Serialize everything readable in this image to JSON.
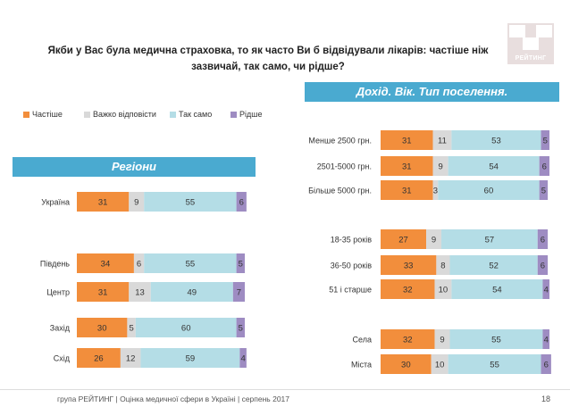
{
  "page": {
    "title": "Якби у Вас була медична страховка, то як часто Ви б відвідували лікарів: частіше ніж зазвичай, так само, чи рідше?",
    "logo_text": "РЕЙТИНГ",
    "footer": "група РЕЙТИНГ  |  Оцінка медичної сфери в Україні  |  серпень 2017",
    "page_number": "18"
  },
  "sections": {
    "regions": "Регіони",
    "demographics": "Дохід. Вік. Тип поселення."
  },
  "colors": {
    "more_often": "#f28e3c",
    "hard_to_say": "#d9d9d9",
    "same": "#b4dde6",
    "less_often": "#9e8cc2",
    "banner": "#4aaad0"
  },
  "chart_data": [
    {
      "type": "bar",
      "orientation": "horizontal",
      "stacked": true,
      "title": "Регіони",
      "legend": [
        "Частіше",
        "Важко відповісти",
        "Так само",
        "Рідше"
      ],
      "legend_position": "top",
      "xlim": [
        0,
        100
      ],
      "categories": [
        "Україна",
        "Південь",
        "Центр",
        "Захід",
        "Схід"
      ],
      "series": [
        {
          "name": "Частіше",
          "values": [
            31,
            34,
            31,
            30,
            26
          ]
        },
        {
          "name": "Важко відповісти",
          "values": [
            9,
            6,
            13,
            5,
            12
          ]
        },
        {
          "name": "Так само",
          "values": [
            55,
            55,
            49,
            60,
            59
          ]
        },
        {
          "name": "Рідше",
          "values": [
            6,
            5,
            7,
            5,
            4
          ]
        }
      ]
    },
    {
      "type": "bar",
      "orientation": "horizontal",
      "stacked": true,
      "title": "Дохід. Вік. Тип поселення.",
      "xlim": [
        0,
        100
      ],
      "categories": [
        "Менше 2500 грн.",
        "2501-5000 грн.",
        "Більше 5000 грн.",
        "18-35 років",
        "36-50 років",
        "51 і старше",
        "Села",
        "Міста"
      ],
      "series": [
        {
          "name": "Частіше",
          "values": [
            31,
            31,
            31,
            27,
            33,
            32,
            32,
            30
          ]
        },
        {
          "name": "Важко відповісти",
          "values": [
            11,
            9,
            3,
            9,
            8,
            10,
            9,
            10
          ]
        },
        {
          "name": "Так само",
          "values": [
            53,
            54,
            60,
            57,
            52,
            54,
            55,
            55
          ]
        },
        {
          "name": "Рідше",
          "values": [
            5,
            6,
            5,
            6,
            6,
            4,
            4,
            6
          ]
        }
      ]
    }
  ]
}
